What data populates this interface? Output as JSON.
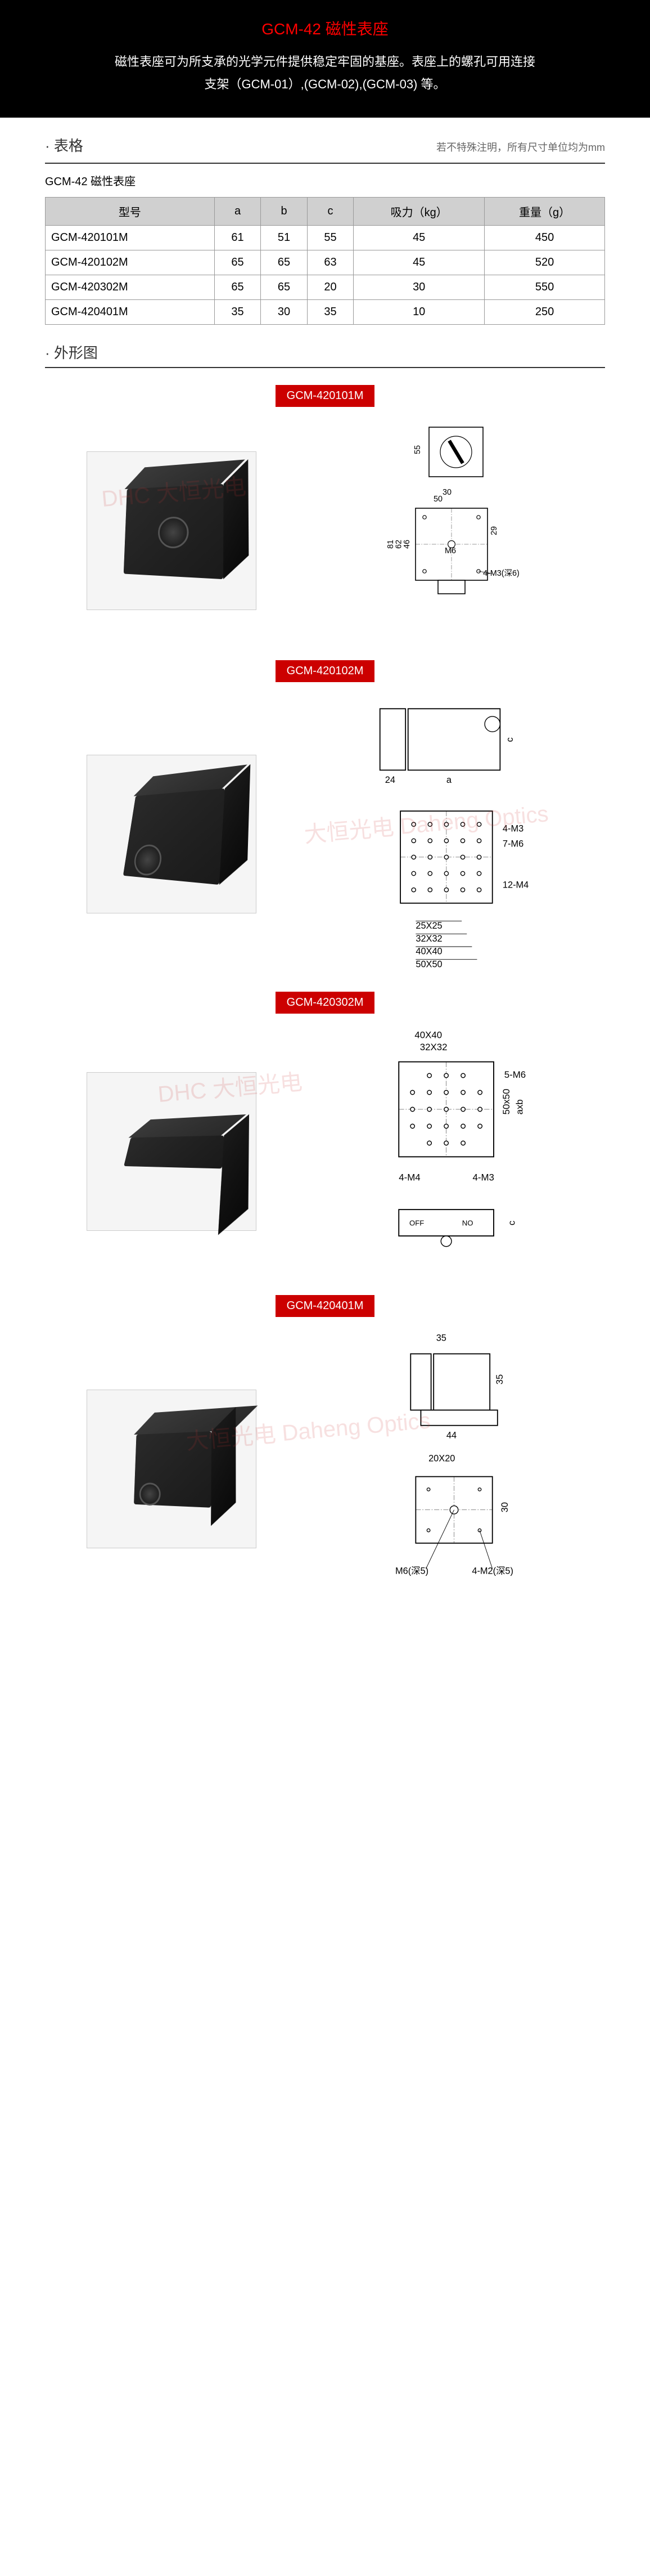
{
  "header": {
    "title": "GCM-42 磁性表座",
    "desc_line1": "磁性表座可为所支承的光学元件提供稳定牢固的基座。表座上的螺孔可用连接",
    "desc_line2": "支架（GCM-01）,(GCM-02),(GCM-03) 等。"
  },
  "spec_section": {
    "title": "· 表格",
    "note": "若不特殊注明，所有尺寸单位均为mm",
    "subtitle": "GCM-42 磁性表座",
    "columns": [
      "型号",
      "a",
      "b",
      "c",
      "吸力（kg）",
      "重量（g）"
    ],
    "rows": [
      [
        "GCM-420101M",
        "61",
        "51",
        "55",
        "45",
        "450"
      ],
      [
        "GCM-420102M",
        "65",
        "65",
        "63",
        "45",
        "520"
      ],
      [
        "GCM-420302M",
        "65",
        "65",
        "20",
        "30",
        "550"
      ],
      [
        "GCM-420401M",
        "35",
        "30",
        "35",
        "10",
        "250"
      ]
    ]
  },
  "outline_section": {
    "title": "· 外形图"
  },
  "models": [
    {
      "id": "GCM-420101M",
      "dims": {
        "top_h": "55",
        "width": "50",
        "inner_w": "30",
        "h1": "81",
        "h2": "62",
        "h3": "46",
        "h4": "29",
        "hole": "M6",
        "corner": "4-M3(深6)"
      }
    },
    {
      "id": "GCM-420102M",
      "dims": {
        "side_w": "24",
        "side_a": "a",
        "side_c": "c",
        "m3": "4-M3",
        "m6": "7-M6",
        "m4": "12-M4",
        "g1": "25X25",
        "g2": "32X32",
        "g3": "40X40",
        "g4": "50X50"
      }
    },
    {
      "id": "GCM-420302M",
      "dims": {
        "g1": "40X40",
        "g2": "32X32",
        "m6": "5-M6",
        "axb": "axb",
        "s50": "50x50",
        "m4": "4-M4",
        "m3": "4-M3",
        "off": "OFF",
        "no": "NO",
        "c": "c"
      }
    },
    {
      "id": "GCM-420401M",
      "dims": {
        "w": "35",
        "h": "35",
        "base_w": "44",
        "grid": "20X20",
        "side_h": "30",
        "hole1": "M6(深5)",
        "hole2": "4-M2(深5)"
      }
    }
  ],
  "watermark": "大恒光电 Daheng Optics",
  "colors": {
    "header_bg": "#000000",
    "title": "#ff0000",
    "model_bg": "#cc0000",
    "table_header": "#d0d0d0"
  }
}
